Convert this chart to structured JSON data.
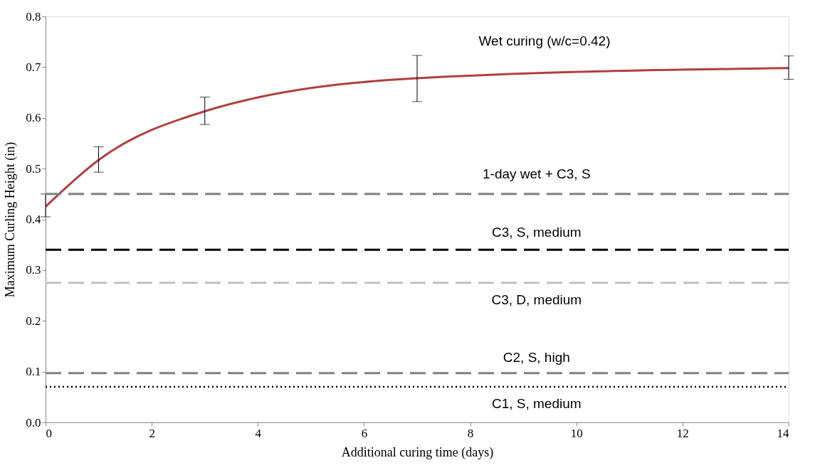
{
  "chart_data": {
    "type": "line",
    "xlabel": "Additional curing time (days)",
    "ylabel": "Maximum Curling Height (in)",
    "xlim": [
      0,
      14
    ],
    "xticks": [
      0,
      2,
      4,
      6,
      8,
      10,
      12,
      14
    ],
    "ylim": [
      0,
      0.8
    ],
    "yticks": [
      {
        "value": 0,
        "label": "0.0"
      },
      0.1,
      0.2,
      0.3,
      0.4,
      0.5,
      0.6,
      0.7,
      0.8
    ],
    "grid": false,
    "legend": false,
    "marker": "none",
    "series": [
      {
        "name": "Wet curing (w/c=0.42)",
        "color": "#b04040",
        "line_style": "solid",
        "x": [
          0,
          1,
          3,
          7,
          14
        ],
        "values": [
          0.425,
          0.517,
          0.613,
          0.678,
          0.698
        ],
        "errors": [
          [
            0.405,
            0.45
          ],
          [
            0.493,
            0.543
          ],
          [
            0.587,
            0.641
          ],
          [
            0.632,
            0.723
          ],
          [
            0.676,
            0.722
          ]
        ]
      },
      {
        "name": "1-day wet + C3, S",
        "color": "#808080",
        "line_style": "dashed",
        "x": [
          0,
          14
        ],
        "values": [
          0.45,
          0.45
        ]
      },
      {
        "name": "C3, S, medium",
        "color": "#000000",
        "line_style": "dashed",
        "x": [
          0,
          14
        ],
        "values": [
          0.34,
          0.34
        ]
      },
      {
        "name": "C3, D, medium",
        "color": "#c0c0c0",
        "line_style": "dashed",
        "x": [
          0,
          14
        ],
        "values": [
          0.275,
          0.275
        ]
      },
      {
        "name": "C2, S, high",
        "color": "#808080",
        "line_style": "dashed",
        "x": [
          0,
          14
        ],
        "values": [
          0.097,
          0.097
        ]
      },
      {
        "name": "C1, S, medium",
        "color": "#000000",
        "line_style": "dotted",
        "x": [
          0,
          14
        ],
        "values": [
          0.07,
          0.07
        ]
      }
    ]
  }
}
